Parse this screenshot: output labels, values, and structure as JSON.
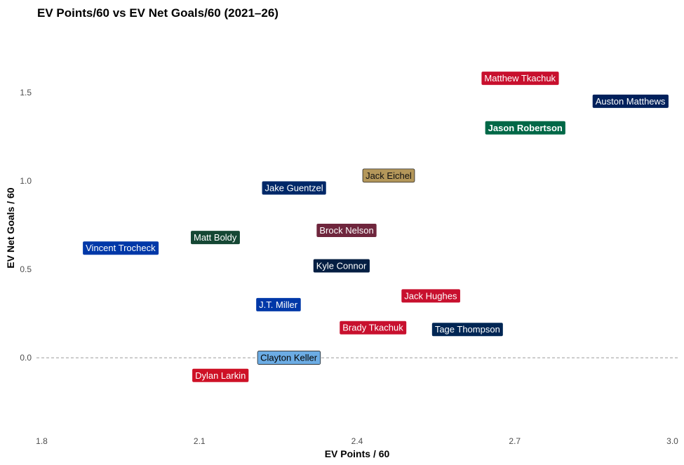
{
  "chart_data": {
    "type": "scatter",
    "title": "EV Points/60 vs EV Net Goals/60 (2021–26)",
    "xlabel": "EV Points / 60",
    "ylabel": "EV Net Goals / 60",
    "xlim": [
      1.79,
      3.01
    ],
    "ylim": [
      -0.42,
      1.88
    ],
    "x_ticks": [
      1.8,
      2.1,
      2.4,
      2.7,
      3.0
    ],
    "x_tick_labels": [
      "1.8",
      "2.1",
      "2.4",
      "2.7",
      "3.0"
    ],
    "y_ticks": [
      0.0,
      0.5,
      1.0,
      1.5
    ],
    "y_tick_labels": [
      "0.0",
      "0.5",
      "1.0",
      "1.5"
    ],
    "reference_line": {
      "y": 0.0,
      "style": "dashed"
    },
    "grid": false,
    "legend": "none",
    "points": [
      {
        "label": "Matthew Tkachuk",
        "x": 2.71,
        "y": 1.58,
        "fill": "#C8102E",
        "text": "#ffffff",
        "bold": false
      },
      {
        "label": "Auston Matthews",
        "x": 2.92,
        "y": 1.45,
        "fill": "#00205B",
        "text": "#ffffff",
        "bold": false
      },
      {
        "label": "Jason Robertson",
        "x": 2.72,
        "y": 1.3,
        "fill": "#006847",
        "text": "#ffffff",
        "bold": true
      },
      {
        "label": "Jack Eichel",
        "x": 2.46,
        "y": 1.03,
        "fill": "#B4975A",
        "text": "#111111",
        "bold": false
      },
      {
        "label": "Jake Guentzel",
        "x": 2.28,
        "y": 0.96,
        "fill": "#002868",
        "text": "#ffffff",
        "bold": false
      },
      {
        "label": "Matt Boldy",
        "x": 2.13,
        "y": 0.68,
        "fill": "#154734",
        "text": "#ffffff",
        "bold": false
      },
      {
        "label": "Brock Nelson",
        "x": 2.38,
        "y": 0.72,
        "fill": "#6F263D",
        "text": "#ffffff",
        "bold": false
      },
      {
        "label": "Vincent Trocheck",
        "x": 1.95,
        "y": 0.62,
        "fill": "#0038A8",
        "text": "#ffffff",
        "bold": false
      },
      {
        "label": "Kyle Connor",
        "x": 2.37,
        "y": 0.52,
        "fill": "#041E42",
        "text": "#ffffff",
        "bold": false
      },
      {
        "label": "Jack Hughes",
        "x": 2.54,
        "y": 0.35,
        "fill": "#C8102E",
        "text": "#ffffff",
        "bold": false
      },
      {
        "label": "J.T. Miller",
        "x": 2.25,
        "y": 0.3,
        "fill": "#0038A8",
        "text": "#ffffff",
        "bold": false
      },
      {
        "label": "Brady Tkachuk",
        "x": 2.43,
        "y": 0.17,
        "fill": "#C8102E",
        "text": "#ffffff",
        "bold": false
      },
      {
        "label": "Tage Thompson",
        "x": 2.61,
        "y": 0.16,
        "fill": "#002654",
        "text": "#ffffff",
        "bold": false
      },
      {
        "label": "Clayton Keller",
        "x": 2.27,
        "y": 0.0,
        "fill": "#6CACE4",
        "text": "#000000",
        "bold": false
      },
      {
        "label": "Dylan Larkin",
        "x": 2.14,
        "y": -0.1,
        "fill": "#CE1126",
        "text": "#ffffff",
        "bold": false
      }
    ]
  }
}
